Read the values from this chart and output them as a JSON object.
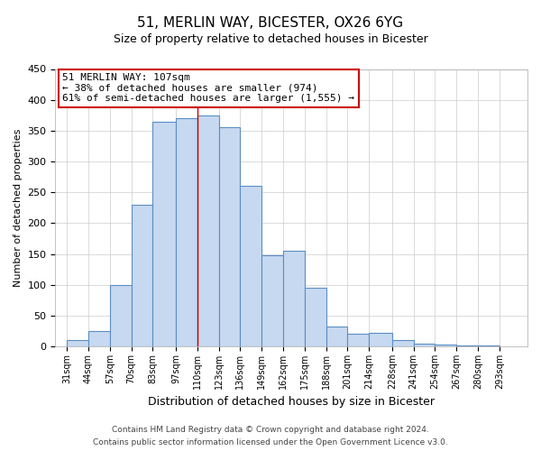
{
  "title": "51, MERLIN WAY, BICESTER, OX26 6YG",
  "subtitle": "Size of property relative to detached houses in Bicester",
  "xlabel": "Distribution of detached houses by size in Bicester",
  "ylabel": "Number of detached properties",
  "footer_line1": "Contains HM Land Registry data © Crown copyright and database right 2024.",
  "footer_line2": "Contains public sector information licensed under the Open Government Licence v3.0.",
  "annotation_title": "51 MERLIN WAY: 107sqm",
  "annotation_line2": "← 38% of detached houses are smaller (974)",
  "annotation_line3": "61% of semi-detached houses are larger (1,555) →",
  "bar_left_edges": [
    31,
    44,
    57,
    70,
    83,
    97,
    110,
    123,
    136,
    149,
    162,
    175,
    188,
    201,
    214,
    228,
    241,
    254,
    267,
    280
  ],
  "bar_widths": [
    13,
    13,
    13,
    13,
    14,
    13,
    13,
    13,
    13,
    13,
    13,
    13,
    13,
    13,
    14,
    13,
    13,
    13,
    13,
    13
  ],
  "bar_heights": [
    10,
    25,
    100,
    230,
    365,
    370,
    375,
    355,
    260,
    148,
    155,
    95,
    33,
    20,
    22,
    10,
    5,
    3,
    1,
    2
  ],
  "tick_labels": [
    "31sqm",
    "44sqm",
    "57sqm",
    "70sqm",
    "83sqm",
    "97sqm",
    "110sqm",
    "123sqm",
    "136sqm",
    "149sqm",
    "162sqm",
    "175sqm",
    "188sqm",
    "201sqm",
    "214sqm",
    "228sqm",
    "241sqm",
    "254sqm",
    "267sqm",
    "280sqm",
    "293sqm"
  ],
  "tick_positions": [
    31,
    44,
    57,
    70,
    83,
    97,
    110,
    123,
    136,
    149,
    162,
    175,
    188,
    201,
    214,
    228,
    241,
    254,
    267,
    280,
    293
  ],
  "bar_color": "#c6d9f0",
  "bar_edge_color": "#5b8ec4",
  "property_line_x": 110,
  "ylim": [
    0,
    450
  ],
  "xlim": [
    24,
    310
  ],
  "annotation_box_color": "#ffffff",
  "annotation_box_edge": "#cc0000",
  "bg_color": "#ffffff",
  "grid_color": "#cccccc",
  "yticks": [
    0,
    50,
    100,
    150,
    200,
    250,
    300,
    350,
    400,
    450
  ]
}
